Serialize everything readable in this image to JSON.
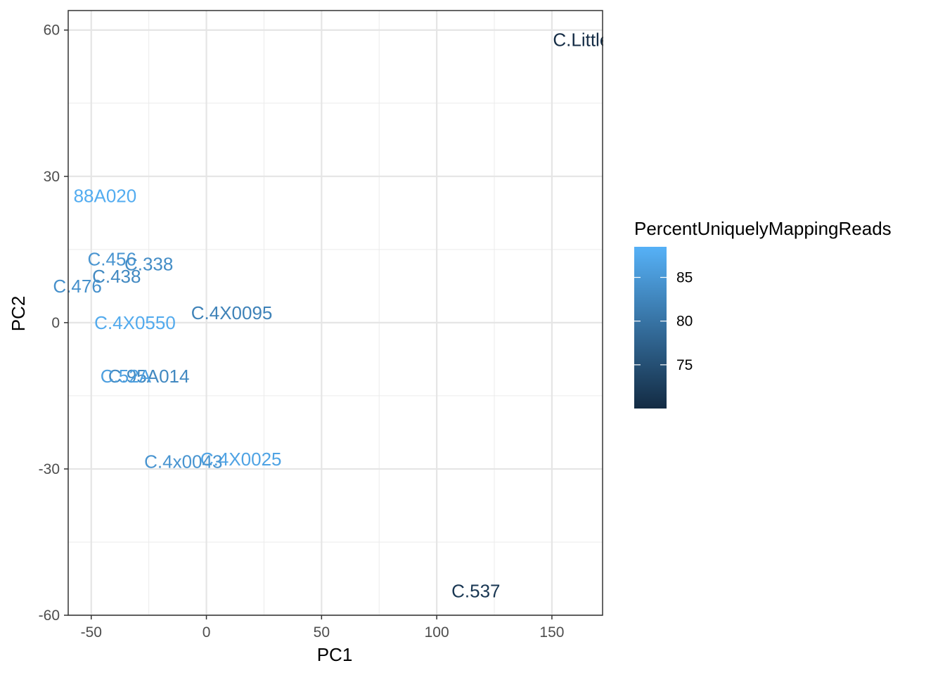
{
  "chart_data": {
    "type": "scatter",
    "title": "",
    "xlabel": "PC1",
    "ylabel": "PC2",
    "xlim": [
      -60,
      172
    ],
    "ylim": [
      -60,
      64
    ],
    "x_ticks": [
      -50,
      0,
      50,
      100,
      150
    ],
    "y_ticks": [
      -60,
      -30,
      0,
      30,
      60
    ],
    "x_minor": [
      -25,
      25,
      75,
      125
    ],
    "y_minor": [
      -45,
      -15,
      15,
      45
    ],
    "grid": true,
    "legend": {
      "title": "PercentUniquelyMappingReads",
      "position": "right",
      "type": "colorbar",
      "range": [
        70,
        88.5
      ],
      "ticks": [
        75,
        80,
        85
      ],
      "low_color": "#132B43",
      "high_color": "#56B1F7"
    },
    "points": [
      {
        "label": "C.Little_",
        "x": 165,
        "y": 58,
        "value": 70.2
      },
      {
        "label": "88A020",
        "x": -44,
        "y": 26,
        "value": 87.8
      },
      {
        "label": "C.456",
        "x": -41,
        "y": 13,
        "value": 84.5
      },
      {
        "label": "C.338",
        "x": -25,
        "y": 12,
        "value": 83.5
      },
      {
        "label": "C.438",
        "x": -39,
        "y": 9.5,
        "value": 83.0
      },
      {
        "label": "C.476",
        "x": -56,
        "y": 7.5,
        "value": 84.0
      },
      {
        "label": "C.4X0095",
        "x": 11,
        "y": 2,
        "value": 82.0
      },
      {
        "label": "C.4X0550",
        "x": -31,
        "y": 0,
        "value": 87.5
      },
      {
        "label": "C.95A014",
        "x": -25,
        "y": -11,
        "value": 83.0
      },
      {
        "label": "C.52A",
        "x": -35,
        "y": -11,
        "value": 86.0
      },
      {
        "label": "C.4X0025",
        "x": 15,
        "y": -28,
        "value": 86.5
      },
      {
        "label": "C.4x0043",
        "x": -10,
        "y": -28.5,
        "value": 84.5
      },
      {
        "label": "C.537",
        "x": 117,
        "y": -55,
        "value": 71.5
      }
    ]
  }
}
